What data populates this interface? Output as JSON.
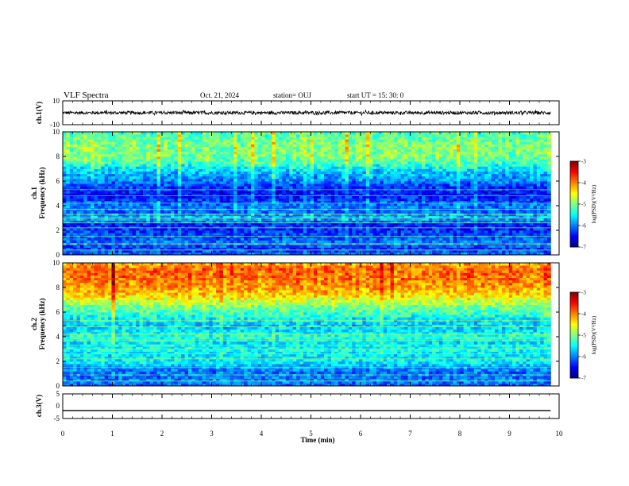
{
  "header": {
    "title": "VLF Spectra",
    "date": "Oct. 21, 2024",
    "station": "station= OUJ",
    "start": "start  UT  =   15: 30: 0"
  },
  "chart_data": [
    {
      "type": "line",
      "name": "ch1-waveform",
      "ylabel": "ch.1(V)",
      "ylim": [
        -10,
        10
      ],
      "yticks": [
        "10",
        "-10"
      ],
      "x": [
        0,
        10
      ],
      "y_mean": 0,
      "y_noise_amplitude": 1.4,
      "color": "#000000"
    },
    {
      "type": "heatmap",
      "name": "ch1-spectrogram",
      "ylabel_top": "ch.1",
      "ylabel": "Frequency (kHz)",
      "ylim": [
        0,
        10
      ],
      "yticks": [
        "0",
        "2",
        "4",
        "6",
        "8",
        "10"
      ],
      "xlim": [
        0,
        9.83
      ],
      "colorbar": {
        "label": "log(PSD)(V²/Hz)",
        "range": [
          -7,
          -3
        ],
        "ticks": [
          "-3",
          "-4",
          "-5",
          "-6",
          "-7"
        ]
      },
      "profile_freq_khz": [
        0,
        0.5,
        1,
        1.5,
        2,
        2.5,
        3,
        3.5,
        4,
        4.5,
        5,
        5.5,
        6,
        6.5,
        7,
        7.5,
        8,
        8.5,
        9,
        9.5,
        10
      ],
      "profile_log_psd": [
        -6.0,
        -6.3,
        -6.0,
        -6.2,
        -6.3,
        -6.4,
        -5.7,
        -6.1,
        -6.0,
        -6.3,
        -6.5,
        -6.3,
        -6.0,
        -5.8,
        -5.6,
        -5.2,
        -5.0,
        -5.0,
        -5.0,
        -5.1,
        -5.2
      ]
    },
    {
      "type": "heatmap",
      "name": "ch2-spectrogram",
      "ylabel_top": "ch.2",
      "ylabel": "Frequency (kHz)",
      "ylim": [
        0,
        10
      ],
      "yticks": [
        "0",
        "2",
        "4",
        "6",
        "8",
        "10"
      ],
      "xlim": [
        0,
        9.83
      ],
      "colorbar": {
        "label": "log(PSD)(V²/Hz)",
        "range": [
          -7,
          -3
        ],
        "ticks": [
          "-3",
          "-4",
          "-5",
          "-6",
          "-7"
        ]
      },
      "profile_freq_khz": [
        0,
        0.5,
        1,
        1.5,
        2,
        2.5,
        3,
        3.5,
        4,
        4.5,
        5,
        5.5,
        6,
        6.5,
        7,
        7.5,
        8,
        8.5,
        9,
        9.5,
        10
      ],
      "profile_log_psd": [
        -6.1,
        -6.0,
        -6.1,
        -5.9,
        -5.5,
        -5.6,
        -5.4,
        -5.6,
        -5.3,
        -5.6,
        -5.7,
        -5.5,
        -5.2,
        -5.0,
        -4.6,
        -4.3,
        -4.1,
        -4.0,
        -3.9,
        -3.9,
        -4.2
      ]
    },
    {
      "type": "line",
      "name": "ch3-waveform",
      "ylabel": "ch.3(V)",
      "ylim": [
        -5,
        5
      ],
      "yticks": [
        "5",
        "0",
        "-5"
      ],
      "x": [
        0,
        9.83
      ],
      "y": [
        -1.8,
        -1.8
      ],
      "color": "#000000"
    }
  ],
  "xaxis": {
    "label": "Time (min)",
    "ticks": [
      "0",
      "1",
      "2",
      "3",
      "4",
      "5",
      "6",
      "7",
      "8",
      "9",
      "10"
    ],
    "range": [
      0,
      10
    ]
  }
}
